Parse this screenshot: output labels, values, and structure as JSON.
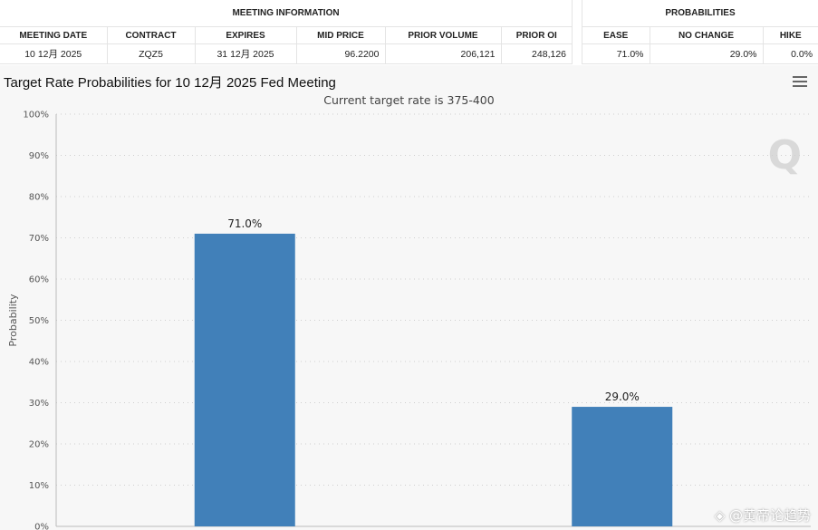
{
  "meeting_table": {
    "section_title": "MEETING INFORMATION",
    "headers": [
      "MEETING DATE",
      "CONTRACT",
      "EXPIRES",
      "MID PRICE",
      "PRIOR VOLUME",
      "PRIOR OI"
    ],
    "row": [
      "10 12月 2025",
      "ZQZ5",
      "31 12月 2025",
      "96.2200",
      "206,121",
      "248,126"
    ]
  },
  "prob_table": {
    "section_title": "PROBABILITIES",
    "headers": [
      "EASE",
      "NO CHANGE",
      "HIKE"
    ],
    "row": [
      "71.0%",
      "29.0%",
      "0.0%"
    ]
  },
  "menu_icon": "hamburger-menu-icon",
  "watermark": "Q",
  "credit": "◈ @黄帝论趋势",
  "chart_data": {
    "type": "bar",
    "title": "Target Rate Probabilities for 10 12月 2025 Fed Meeting",
    "subtitle": "Current target rate is 375-400",
    "xlabel": "",
    "ylabel": "Probability",
    "categories": [
      "",
      ""
    ],
    "values": [
      71.0,
      29.0
    ],
    "data_labels": [
      "71.0%",
      "29.0%"
    ],
    "ylim": [
      0,
      100
    ],
    "yticks": [
      "0%",
      "10%",
      "20%",
      "30%",
      "40%",
      "50%",
      "60%",
      "70%",
      "80%",
      "90%",
      "100%"
    ],
    "grid": true,
    "bar_color": "#4180b9"
  }
}
